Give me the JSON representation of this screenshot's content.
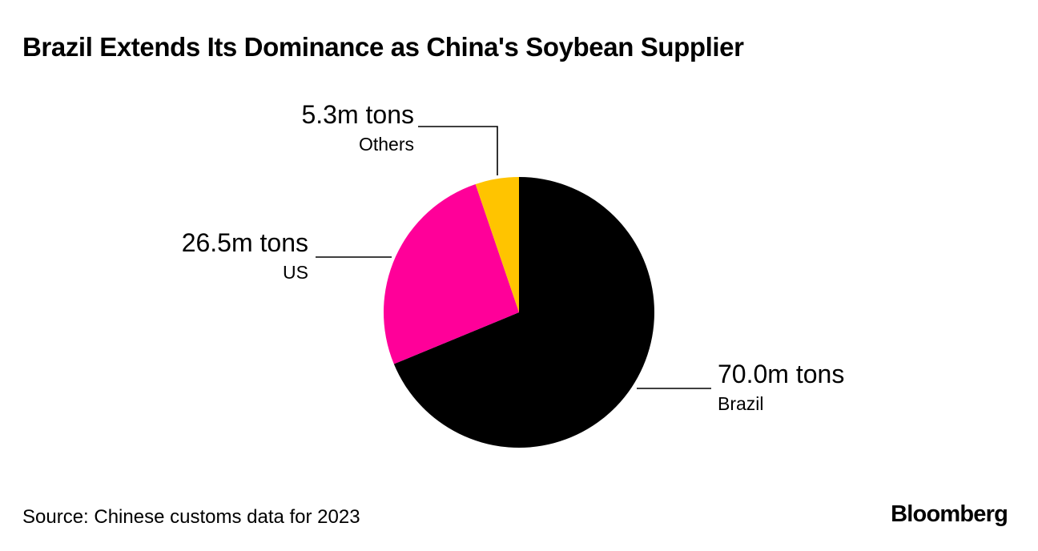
{
  "title": "Brazil Extends Its Dominance as China's Soybean Supplier",
  "source": "Source: Chinese customs data for 2023",
  "brand": "Bloomberg",
  "chart_data": {
    "type": "pie",
    "title": "Brazil Extends Its Dominance as China's Soybean Supplier",
    "unit": "m tons",
    "slices": [
      {
        "name": "Brazil",
        "value": 70.0,
        "label": "70.0m tons",
        "color": "#000000"
      },
      {
        "name": "US",
        "value": 26.5,
        "label": "26.5m tons",
        "color": "#ff0099"
      },
      {
        "name": "Others",
        "value": 5.3,
        "label": "5.3m tons",
        "color": "#ffc400"
      }
    ],
    "start": "12 o'clock",
    "direction": "clockwise",
    "legend": "callout labels"
  }
}
